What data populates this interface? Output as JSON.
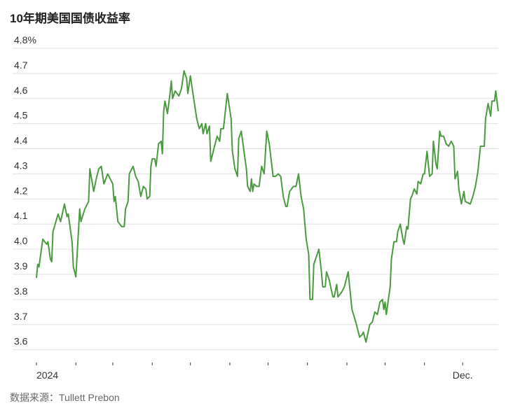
{
  "chart_data": {
    "type": "line",
    "title": "10年期美国国债收益率",
    "source": "数据来源：Tullett Prebon",
    "series": [
      {
        "name": "10年期美国国债收益率",
        "color": "#4a9a3f",
        "x": [
          0,
          1,
          2,
          5,
          8,
          9,
          11,
          12,
          13,
          17,
          19,
          22,
          24,
          25,
          28,
          29,
          31,
          34,
          35,
          38,
          41,
          42,
          45,
          47,
          49,
          51,
          53,
          56,
          60,
          61,
          62,
          64,
          67,
          69,
          70,
          72,
          73,
          76,
          78,
          80,
          82,
          84,
          86,
          87,
          89,
          90,
          91,
          93,
          94,
          96,
          98,
          99,
          100,
          101,
          103,
          105,
          106,
          107,
          109,
          112,
          114,
          116,
          118,
          119,
          121,
          123,
          126,
          128,
          130,
          131,
          133,
          134,
          136,
          137,
          139,
          142,
          144,
          145,
          147,
          150,
          153,
          154,
          156,
          158,
          159,
          161,
          165,
          166,
          168,
          169,
          170,
          171,
          173,
          175,
          177,
          179,
          181,
          183,
          186,
          188,
          190,
          192,
          194,
          196,
          197,
          199,
          202,
          204,
          206,
          208,
          210,
          212,
          214,
          215,
          217,
          218,
          222,
          224,
          225,
          227,
          228,
          230,
          233,
          234,
          236,
          237,
          240,
          242,
          245,
          246,
          248,
          251,
          252,
          254,
          256,
          257,
          259,
          262,
          264,
          266,
          268,
          270,
          272,
          273,
          274,
          275,
          278,
          279,
          281,
          283,
          284,
          286,
          288,
          289,
          291,
          292,
          294,
          295,
          297,
          299,
          300,
          302,
          304,
          305,
          307,
          309,
          311,
          312,
          314,
          315,
          317,
          318,
          320,
          322,
          324,
          326,
          328,
          329,
          331,
          332,
          334,
          336,
          337,
          341,
          343,
          345,
          347,
          349,
          352,
          353,
          355,
          357,
          358,
          360,
          361,
          363
        ],
        "values": [
          3.886,
          3.94,
          3.93,
          4.04,
          4.02,
          4.03,
          3.96,
          3.95,
          4.07,
          4.14,
          4.11,
          4.18,
          4.13,
          4.14,
          4.03,
          3.93,
          3.89,
          4.16,
          4.11,
          4.16,
          4.19,
          4.32,
          4.23,
          4.28,
          4.32,
          4.33,
          4.26,
          4.3,
          4.26,
          4.19,
          4.21,
          4.11,
          4.09,
          4.09,
          4.16,
          4.19,
          4.3,
          4.33,
          4.29,
          4.27,
          4.21,
          4.25,
          4.24,
          4.2,
          4.21,
          4.33,
          4.36,
          4.36,
          4.33,
          4.42,
          4.43,
          4.38,
          4.55,
          4.59,
          4.54,
          4.62,
          4.67,
          4.6,
          4.63,
          4.61,
          4.64,
          4.71,
          4.68,
          4.62,
          4.69,
          4.62,
          4.52,
          4.48,
          4.5,
          4.46,
          4.5,
          4.46,
          4.49,
          4.35,
          4.39,
          4.45,
          4.43,
          4.48,
          4.48,
          4.62,
          4.52,
          4.39,
          4.32,
          4.29,
          4.44,
          4.47,
          4.32,
          4.25,
          4.23,
          4.28,
          4.23,
          4.26,
          4.25,
          4.25,
          4.33,
          4.3,
          4.47,
          4.42,
          4.29,
          4.29,
          4.3,
          4.29,
          4.21,
          4.17,
          4.17,
          4.23,
          4.25,
          4.25,
          4.3,
          4.21,
          4.16,
          4.04,
          3.98,
          3.8,
          3.8,
          3.94,
          4.0,
          3.91,
          3.85,
          3.85,
          3.91,
          3.88,
          3.81,
          3.81,
          3.86,
          3.81,
          3.83,
          3.85,
          3.91,
          3.86,
          3.76,
          3.71,
          3.69,
          3.65,
          3.66,
          3.67,
          3.63,
          3.7,
          3.71,
          3.75,
          3.74,
          3.79,
          3.8,
          3.76,
          3.79,
          3.74,
          3.85,
          3.96,
          4.03,
          4.03,
          4.07,
          4.1,
          4.04,
          4.02,
          4.09,
          4.08,
          4.2,
          4.21,
          4.24,
          4.22,
          4.27,
          4.26,
          4.3,
          4.3,
          4.39,
          4.29,
          4.3,
          4.43,
          4.34,
          4.32,
          4.47,
          4.45,
          4.45,
          4.42,
          4.41,
          4.43,
          4.41,
          4.28,
          4.31,
          4.24,
          4.18,
          4.23,
          4.19,
          4.18,
          4.21,
          4.25,
          4.31,
          4.41,
          4.41,
          4.52,
          4.58,
          4.53,
          4.59,
          4.59,
          4.63,
          4.55
        ]
      }
    ],
    "xlim": [
      0,
      363
    ],
    "xticks": [
      {
        "value": 0,
        "label": "2024"
      },
      {
        "value": 335,
        "label": "Dec."
      }
    ],
    "xminorticks": [
      31,
      60,
      91,
      121,
      152,
      182,
      213,
      244,
      274,
      305
    ],
    "ylim": [
      3.56,
      4.8
    ],
    "yticks": [
      3.6,
      3.7,
      3.8,
      3.9,
      {
        "value": 4,
        "label": "4.0"
      },
      4.1,
      4.2,
      4.3,
      4.4,
      4.5,
      4.6,
      4.7,
      {
        "value": 4.8,
        "label": "4.8%"
      }
    ],
    "grid": true
  }
}
